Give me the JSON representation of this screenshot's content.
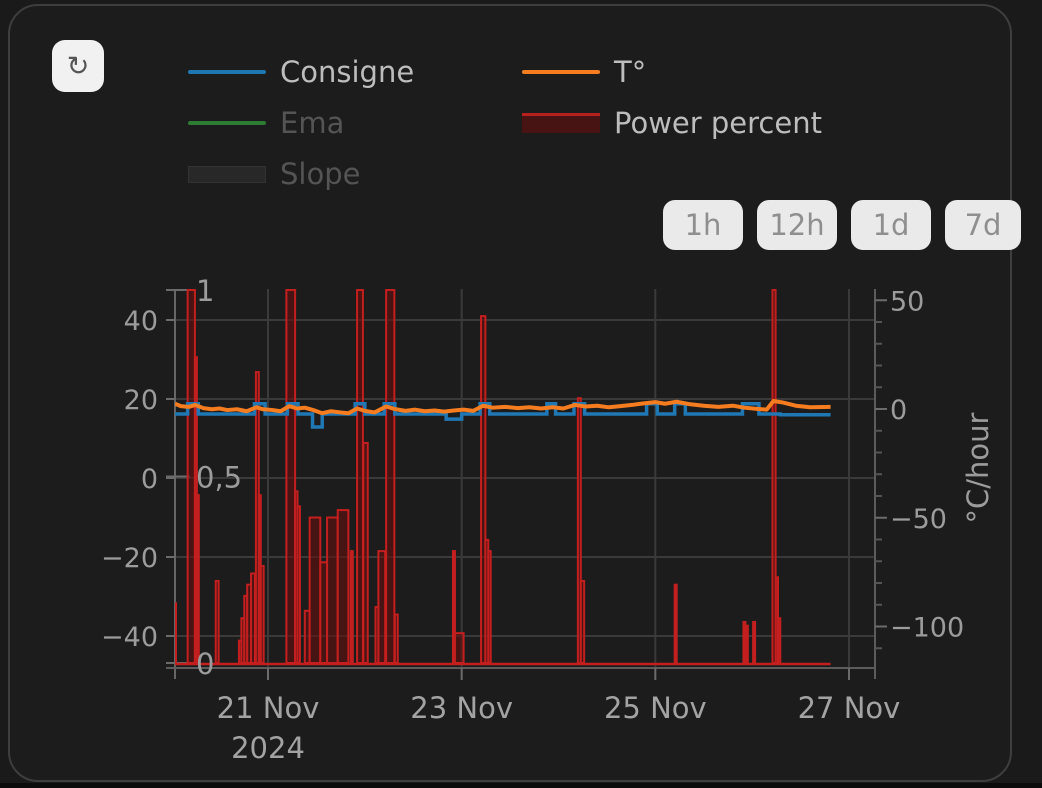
{
  "toolbar": {
    "refresh_icon": "↻"
  },
  "legend": {
    "items": [
      {
        "label": "Consigne",
        "swatch": "line",
        "color": "#1f77b4",
        "state": "active"
      },
      {
        "label": "Ema",
        "swatch": "line",
        "color": "#2d7c33",
        "state": "dimmed"
      },
      {
        "label": "Slope",
        "swatch": "box",
        "color": "#282828",
        "state": "dimmed"
      },
      {
        "label": "T°",
        "swatch": "line",
        "color": "#f57d20",
        "state": "active"
      },
      {
        "label": "Power percent",
        "swatch": "box",
        "color": "#481313",
        "accent": "#b8201d",
        "state": "active"
      }
    ]
  },
  "range_buttons": [
    {
      "label": "1h"
    },
    {
      "label": "12h"
    },
    {
      "label": "1d"
    },
    {
      "label": "7d"
    }
  ],
  "chart_data": {
    "type": "mixed line + bar time series",
    "x_axis": {
      "unit": "days since 2024-11-20 00:00",
      "range_days": [
        0.04,
        7.27
      ],
      "ticks": [
        {
          "day": 1,
          "label": "21 Nov",
          "sub": "2024"
        },
        {
          "day": 3,
          "label": "23 Nov"
        },
        {
          "day": 5,
          "label": "25 Nov"
        },
        {
          "day": 7,
          "label": "27 Nov"
        }
      ]
    },
    "y_axes": {
      "temperature": {
        "side": "left",
        "range": [
          -47.8,
          47.8
        ],
        "ticks": [
          {
            "v": 40,
            "label": "40"
          },
          {
            "v": 20,
            "label": "20"
          },
          {
            "v": 0,
            "label": "0"
          },
          {
            "v": -20,
            "label": "−20"
          },
          {
            "v": -40,
            "label": "−40"
          }
        ]
      },
      "power": {
        "side": "left-inner",
        "range": [
          0,
          1.02
        ],
        "ticks": [
          {
            "v": 1,
            "label": "1"
          },
          {
            "v": 0.5,
            "label": "0,5"
          },
          {
            "v": 0,
            "label": "0"
          }
        ]
      },
      "slope": {
        "side": "right",
        "title": "°C/hour",
        "range": [
          55,
          -119
        ],
        "minor_step": 10,
        "ticks": [
          {
            "v": 50,
            "label": "50"
          },
          {
            "v": 0,
            "label": "0"
          },
          {
            "v": -50,
            "label": "−50"
          },
          {
            "v": -100,
            "label": "−100"
          }
        ]
      }
    },
    "series": [
      {
        "name": "Consigne",
        "type": "step-line",
        "axis": "temperature",
        "color": "#1f77b4",
        "width": 3.5,
        "visible": true,
        "steps": [
          [
            0.04,
            16.2
          ],
          [
            0.17,
            18.8
          ],
          [
            0.28,
            16.2
          ],
          [
            0.86,
            18.8
          ],
          [
            0.97,
            16.2
          ],
          [
            1.2,
            18.8
          ],
          [
            1.31,
            16.2
          ],
          [
            1.46,
            12.9
          ],
          [
            1.56,
            16.2
          ],
          [
            1.9,
            18.8
          ],
          [
            2.0,
            16.2
          ],
          [
            2.2,
            18.8
          ],
          [
            2.31,
            16.2
          ],
          [
            2.84,
            14.9
          ],
          [
            3.0,
            16.2
          ],
          [
            3.19,
            18.8
          ],
          [
            3.29,
            16.2
          ],
          [
            3.88,
            18.8
          ],
          [
            3.97,
            16.2
          ],
          [
            4.16,
            18.8
          ],
          [
            4.27,
            16.2
          ],
          [
            4.91,
            18.8
          ],
          [
            5.02,
            16.2
          ],
          [
            5.2,
            18.8
          ],
          [
            5.31,
            16.2
          ],
          [
            5.9,
            18.8
          ],
          [
            6.07,
            16.2
          ],
          [
            6.29,
            16.0
          ],
          [
            6.81,
            16.0
          ]
        ]
      },
      {
        "name": "T°",
        "type": "line",
        "axis": "temperature",
        "color": "#f57d20",
        "width": 4,
        "visible": true,
        "points": [
          [
            0.04,
            18.8
          ],
          [
            0.1,
            18.2
          ],
          [
            0.18,
            18.0
          ],
          [
            0.25,
            18.5
          ],
          [
            0.33,
            17.7
          ],
          [
            0.42,
            17.4
          ],
          [
            0.5,
            17.6
          ],
          [
            0.58,
            17.2
          ],
          [
            0.68,
            17.4
          ],
          [
            0.78,
            16.9
          ],
          [
            0.88,
            17.9
          ],
          [
            0.95,
            17.4
          ],
          [
            1.05,
            17.2
          ],
          [
            1.13,
            16.9
          ],
          [
            1.22,
            18.2
          ],
          [
            1.3,
            17.6
          ],
          [
            1.38,
            17.8
          ],
          [
            1.48,
            17.1
          ],
          [
            1.56,
            16.4
          ],
          [
            1.65,
            16.9
          ],
          [
            1.75,
            16.6
          ],
          [
            1.83,
            16.4
          ],
          [
            1.92,
            17.6
          ],
          [
            2.0,
            17.0
          ],
          [
            2.1,
            16.6
          ],
          [
            2.22,
            18.1
          ],
          [
            2.32,
            17.4
          ],
          [
            2.42,
            17.0
          ],
          [
            2.52,
            17.3
          ],
          [
            2.62,
            16.9
          ],
          [
            2.72,
            17.1
          ],
          [
            2.82,
            16.8
          ],
          [
            2.92,
            17.1
          ],
          [
            3.02,
            17.3
          ],
          [
            3.12,
            17.0
          ],
          [
            3.22,
            18.3
          ],
          [
            3.32,
            17.8
          ],
          [
            3.45,
            18.0
          ],
          [
            3.58,
            17.7
          ],
          [
            3.7,
            17.9
          ],
          [
            3.82,
            17.6
          ],
          [
            3.94,
            17.9
          ],
          [
            4.05,
            17.6
          ],
          [
            4.17,
            18.5
          ],
          [
            4.28,
            18.1
          ],
          [
            4.4,
            18.3
          ],
          [
            4.52,
            17.9
          ],
          [
            4.64,
            18.2
          ],
          [
            4.76,
            18.5
          ],
          [
            4.88,
            18.9
          ],
          [
            5.0,
            19.2
          ],
          [
            5.1,
            18.8
          ],
          [
            5.22,
            19.3
          ],
          [
            5.35,
            18.7
          ],
          [
            5.5,
            18.3
          ],
          [
            5.65,
            18.0
          ],
          [
            5.8,
            18.3
          ],
          [
            5.92,
            17.8
          ],
          [
            6.05,
            17.5
          ],
          [
            6.15,
            17.3
          ],
          [
            6.22,
            19.5
          ],
          [
            6.32,
            19.1
          ],
          [
            6.45,
            18.3
          ],
          [
            6.6,
            17.9
          ],
          [
            6.81,
            18.0
          ]
        ]
      },
      {
        "name": "Ema",
        "type": "line",
        "axis": "temperature",
        "color": "#2d7c33",
        "visible": false
      },
      {
        "name": "Slope",
        "type": "bar",
        "axis": "slope",
        "color": "#282828",
        "visible": false
      },
      {
        "name": "Power percent",
        "type": "bar",
        "axis": "power",
        "stroke": "#c41f1f",
        "fill": "rgba(100,15,15,0.60)",
        "visible": true,
        "baseline": [
          0.04,
          6.81
        ],
        "bars": [
          [
            0.0,
            0.05,
            0.16
          ],
          [
            0.17,
            0.075,
            1.0
          ],
          [
            0.245,
            0.02,
            0.82
          ],
          [
            0.265,
            0.02,
            0.45
          ],
          [
            0.46,
            0.03,
            0.22
          ],
          [
            0.7,
            0.025,
            0.06
          ],
          [
            0.725,
            0.03,
            0.12
          ],
          [
            0.755,
            0.03,
            0.18
          ],
          [
            0.785,
            0.04,
            0.21
          ],
          [
            0.825,
            0.04,
            0.24
          ],
          [
            0.875,
            0.03,
            0.78
          ],
          [
            0.905,
            0.02,
            0.45
          ],
          [
            0.925,
            0.03,
            0.26
          ],
          [
            1.19,
            0.09,
            1.0
          ],
          [
            1.28,
            0.025,
            0.46
          ],
          [
            1.305,
            0.025,
            0.42
          ],
          [
            1.38,
            0.05,
            0.14
          ],
          [
            1.43,
            0.11,
            0.39
          ],
          [
            1.54,
            0.07,
            0.27
          ],
          [
            1.61,
            0.11,
            0.39
          ],
          [
            1.72,
            0.11,
            0.41
          ],
          [
            1.855,
            0.02,
            0.3
          ],
          [
            1.92,
            0.06,
            1.0
          ],
          [
            1.985,
            0.045,
            0.59
          ],
          [
            2.11,
            0.03,
            0.15
          ],
          [
            2.14,
            0.07,
            0.3
          ],
          [
            2.22,
            0.085,
            1.0
          ],
          [
            2.31,
            0.03,
            0.13
          ],
          [
            2.91,
            0.02,
            0.3
          ],
          [
            2.93,
            0.09,
            0.08
          ],
          [
            3.2,
            0.045,
            0.93
          ],
          [
            3.245,
            0.03,
            0.33
          ],
          [
            3.275,
            0.025,
            0.3
          ],
          [
            4.2,
            0.03,
            0.71
          ],
          [
            4.23,
            0.035,
            0.22
          ],
          [
            5.2,
            0.02,
            0.21
          ],
          [
            5.91,
            0.018,
            0.11
          ],
          [
            5.935,
            0.018,
            0.1
          ],
          [
            6.01,
            0.018,
            0.11
          ],
          [
            6.21,
            0.032,
            1.0
          ],
          [
            6.245,
            0.022,
            0.23
          ],
          [
            6.27,
            0.02,
            0.12
          ]
        ]
      }
    ],
    "layout_hints": {
      "grid": true,
      "legend_position": "top-left",
      "background": "#1c1c1c"
    }
  }
}
